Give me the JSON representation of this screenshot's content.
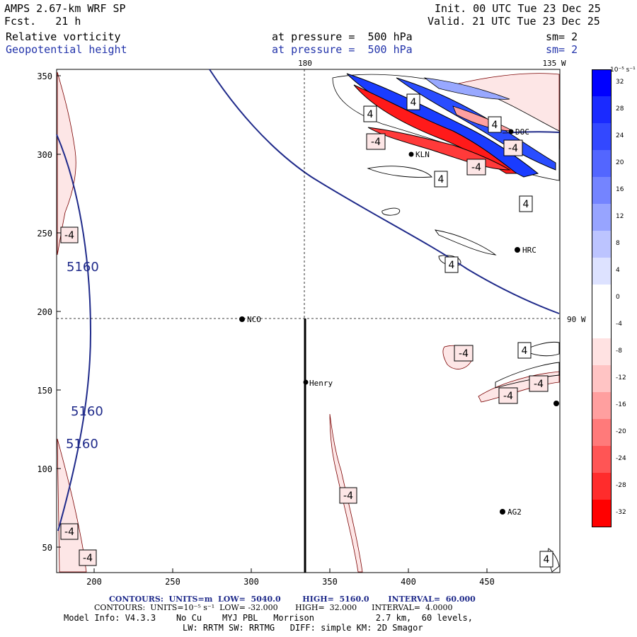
{
  "header": {
    "model": "AMPS 2.67-km WRF SP",
    "forecast": "Fcst.   21 h",
    "init": "Init. 00 UTC Tue 23 Dec 25",
    "valid": "Valid. 21 UTC Tue 23 Dec 25",
    "field1": "Relative vorticity",
    "field2": "Geopotential height",
    "pressure1": "at pressure =  500 hPa",
    "pressure2": "at pressure =  500 hPa",
    "smooth1": "sm= 2",
    "smooth2": "sm= 2"
  },
  "map": {
    "top_lon_labels": [
      "180",
      "135 W"
    ],
    "right_lon_label": "90 W",
    "y_ticks": [
      "350",
      "300",
      "250",
      "200",
      "150",
      "100",
      "50"
    ],
    "x_ticks": [
      "200",
      "250",
      "300",
      "350",
      "400",
      "450"
    ],
    "stations": [
      "NCO",
      "Henry",
      "KLN",
      "DOC",
      "HRC",
      "AG2"
    ],
    "height_contour_labels": [
      "5160",
      "5160",
      "5160"
    ],
    "vorticity_labels": [
      "-4",
      "-4",
      "-4",
      "-4",
      "-4",
      "-4",
      "-4",
      "-4",
      "-4",
      "-4",
      "4",
      "4",
      "4",
      "4",
      "4",
      "4",
      "4",
      "4"
    ]
  },
  "colorbar": {
    "unit": "10⁻⁵ s⁻¹",
    "labels": [
      "32",
      "28",
      "24",
      "20",
      "16",
      "12",
      "8",
      "4",
      "0",
      "-4",
      "-8",
      "-12",
      "-16",
      "-20",
      "-24",
      "-28",
      "-32"
    ],
    "colors": [
      "#0000ff",
      "#1a2aff",
      "#3348ff",
      "#5366ff",
      "#7484ff",
      "#97a4ff",
      "#bcc4ff",
      "#dde2ff",
      "#ffffff",
      "#ffffff",
      "#ffe2e2",
      "#ffc4c4",
      "#ff9f9f",
      "#ff7a7a",
      "#ff5555",
      "#ff2c2c",
      "#ff0000"
    ]
  },
  "footer": {
    "contours1": "CONTOURS:  UNITS=m  LOW=  5040.0        HIGH=  5160.0       INTERVAL=  60.000",
    "contours2": "CONTOURS:  UNITS=10⁻⁵ s⁻¹  LOW= -32.000       HIGH=  32.000      INTERVAL=  4.0000",
    "model_info": "Model Info: V4.3.3    No Cu    MYJ PBL   Morrison            2.7 km,  60 levels,",
    "physics": "LW: RRTM SW: RRTMG   DIFF: simple KM: 2D Smagor"
  }
}
